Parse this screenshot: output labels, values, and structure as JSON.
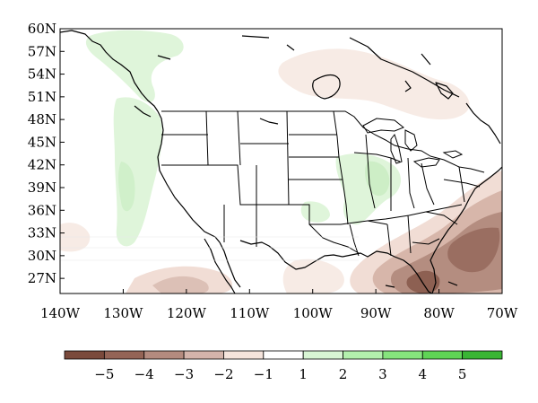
{
  "map": {
    "lat_labels": [
      "60N",
      "57N",
      "54N",
      "51N",
      "48N",
      "45N",
      "42N",
      "39N",
      "36N",
      "33N",
      "30N",
      "27N"
    ],
    "lon_labels": [
      "140W",
      "130W",
      "120W",
      "110W",
      "100W",
      "90W",
      "80W",
      "70W"
    ],
    "lat_range": [
      25,
      60
    ],
    "lon_range": [
      -140,
      -70
    ],
    "colorbar": {
      "labels": [
        "−5",
        "−4",
        "−3",
        "−2",
        "−1",
        "1",
        "2",
        "3",
        "4",
        "5"
      ],
      "colors": [
        "#7a4a3c",
        "#946456",
        "#b48b7f",
        "#d4b4ab",
        "#f5e4dc",
        "#ffffff",
        "#d8f5d4",
        "#b3f0ad",
        "#86e47d",
        "#5fd455",
        "#3ab534"
      ]
    }
  }
}
